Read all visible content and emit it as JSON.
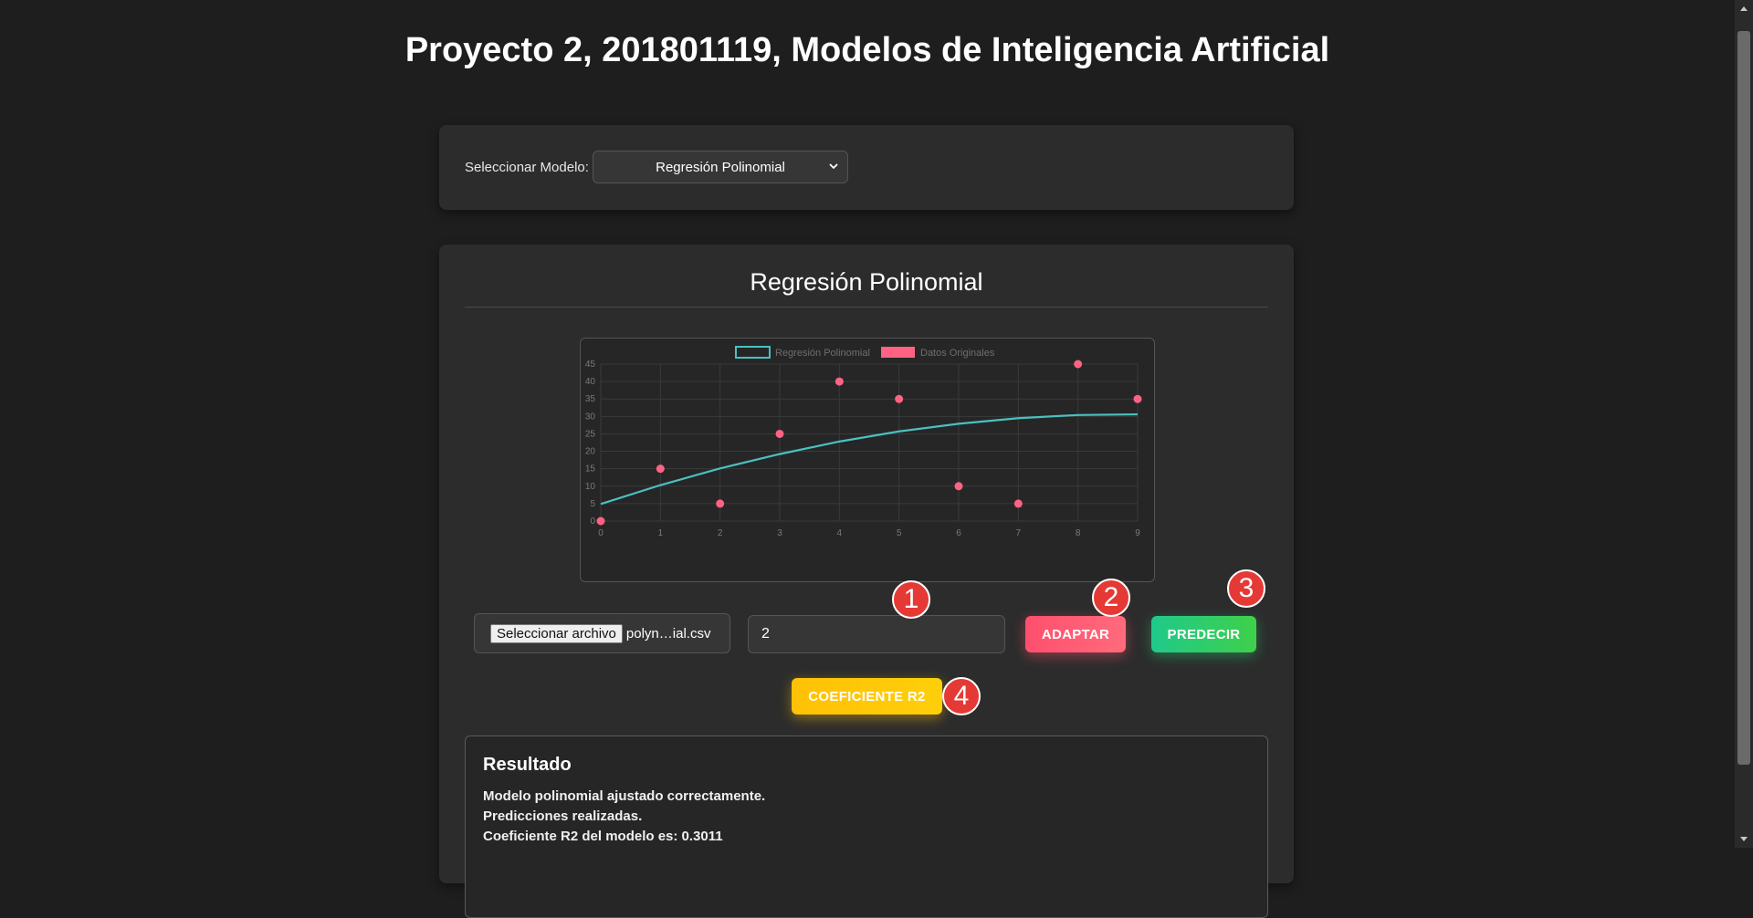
{
  "page": {
    "title": "Proyecto 2, 201801119, Modelos de Inteligencia Artificial"
  },
  "model_selector": {
    "label": "Seleccionar Modelo:",
    "selected": "Regresión Polinomial"
  },
  "panel": {
    "title": "Regresión Polinomial"
  },
  "chart_data": {
    "type": "line",
    "x": [
      0,
      1,
      2,
      3,
      4,
      5,
      6,
      7,
      8,
      9
    ],
    "series": [
      {
        "name": "Regresión Polinomial",
        "type": "line",
        "color": "#4bc0c0",
        "values": [
          4.9,
          10.3,
          15.1,
          19.2,
          22.8,
          25.7,
          27.9,
          29.5,
          30.4,
          30.6
        ]
      },
      {
        "name": "Datos Originales",
        "type": "scatter",
        "color": "#ff6384",
        "values": [
          0,
          15,
          5,
          25,
          40,
          35,
          10,
          5,
          45,
          35
        ]
      }
    ],
    "xticks": [
      "0",
      "1",
      "2",
      "3",
      "4",
      "5",
      "6",
      "7",
      "8",
      "9"
    ],
    "yticks": [
      "0",
      "5",
      "10",
      "15",
      "20",
      "25",
      "30",
      "35",
      "40",
      "45"
    ],
    "xlim": [
      0,
      9
    ],
    "ylim": [
      0,
      45
    ],
    "grid": true,
    "legend_position": "top"
  },
  "controls": {
    "file_button_label": "Seleccionar archivo",
    "file_name": "polyn…ial.csv",
    "degree_value": "2",
    "adapt_label": "ADAPTAR",
    "predict_label": "PREDECIR",
    "r2_label": "COEFICIENTE R2"
  },
  "badges": [
    "1",
    "2",
    "3",
    "4"
  ],
  "result": {
    "title": "Resultado",
    "lines": [
      "Modelo polinomial ajustado correctamente.",
      "Predicciones realizadas.",
      "Coeficiente R2 del modelo es: 0.3011"
    ]
  },
  "colors": {
    "adapt": "#ff4f6e",
    "predict": "#28c76f",
    "r2": "#ffc107",
    "badge": "#e53935"
  }
}
